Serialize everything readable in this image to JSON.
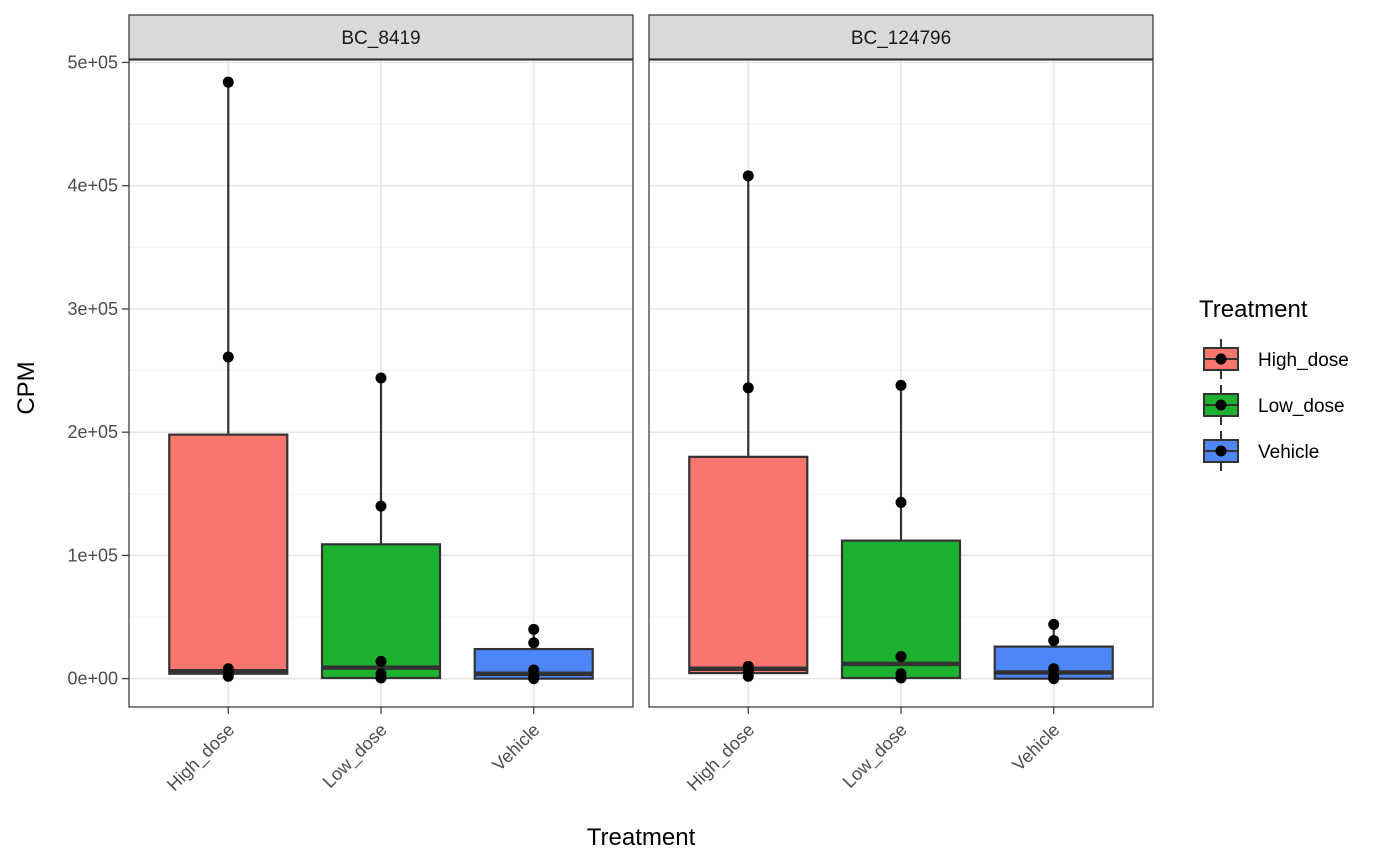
{
  "chart_data": {
    "type": "box",
    "xlabel": "Treatment",
    "ylabel": "CPM",
    "ylim": [
      -23000,
      502000
    ],
    "y_ticks": [
      {
        "value": 0,
        "label": "0e+00"
      },
      {
        "value": 100000,
        "label": "1e+05"
      },
      {
        "value": 200000,
        "label": "2e+05"
      },
      {
        "value": 300000,
        "label": "3e+05"
      },
      {
        "value": 400000,
        "label": "4e+05"
      },
      {
        "value": 500000,
        "label": "5e+05"
      }
    ],
    "y_minor_ticks": [
      50000,
      150000,
      250000,
      350000,
      450000
    ],
    "categories": [
      "High_dose",
      "Low_dose",
      "Vehicle"
    ],
    "grid": true,
    "legend": {
      "title": "Treatment",
      "position": "right",
      "entries": [
        {
          "name": "High_dose",
          "color": "#F8766D"
        },
        {
          "name": "Low_dose",
          "color": "#1CB12E"
        },
        {
          "name": "Vehicle",
          "color": "#4E86F7"
        }
      ]
    },
    "facets": [
      {
        "title": "BC_8419",
        "groups": [
          {
            "category": "High_dose",
            "color": "#F8766D",
            "q1": 4000,
            "median": 6000,
            "q3": 198000,
            "whisker_low": 2000,
            "whisker_high": 484000,
            "points": [
              484000,
              261000,
              8000,
              5000,
              2000
            ]
          },
          {
            "category": "Low_dose",
            "color": "#1CB12E",
            "q1": 500,
            "median": 9000,
            "q3": 109000,
            "whisker_low": 0,
            "whisker_high": 244000,
            "points": [
              244000,
              140000,
              14000,
              4000,
              500
            ]
          },
          {
            "category": "Vehicle",
            "color": "#4E86F7",
            "q1": 0,
            "median": 4000,
            "q3": 24000,
            "whisker_low": 0,
            "whisker_high": 40000,
            "points": [
              40000,
              29000,
              7000,
              2000,
              0
            ]
          }
        ]
      },
      {
        "title": "BC_124796",
        "groups": [
          {
            "category": "High_dose",
            "color": "#F8766D",
            "q1": 4500,
            "median": 8000,
            "q3": 180000,
            "whisker_low": 2000,
            "whisker_high": 408000,
            "points": [
              408000,
              236000,
              10000,
              6000,
              2000
            ]
          },
          {
            "category": "Low_dose",
            "color": "#1CB12E",
            "q1": 500,
            "median": 12000,
            "q3": 112000,
            "whisker_low": 0,
            "whisker_high": 238000,
            "points": [
              238000,
              143000,
              18000,
              4000,
              500
            ]
          },
          {
            "category": "Vehicle",
            "color": "#4E86F7",
            "q1": 0,
            "median": 5000,
            "q3": 26000,
            "whisker_low": 0,
            "whisker_high": 44000,
            "points": [
              44000,
              31000,
              8000,
              2000,
              0
            ]
          }
        ]
      }
    ]
  }
}
